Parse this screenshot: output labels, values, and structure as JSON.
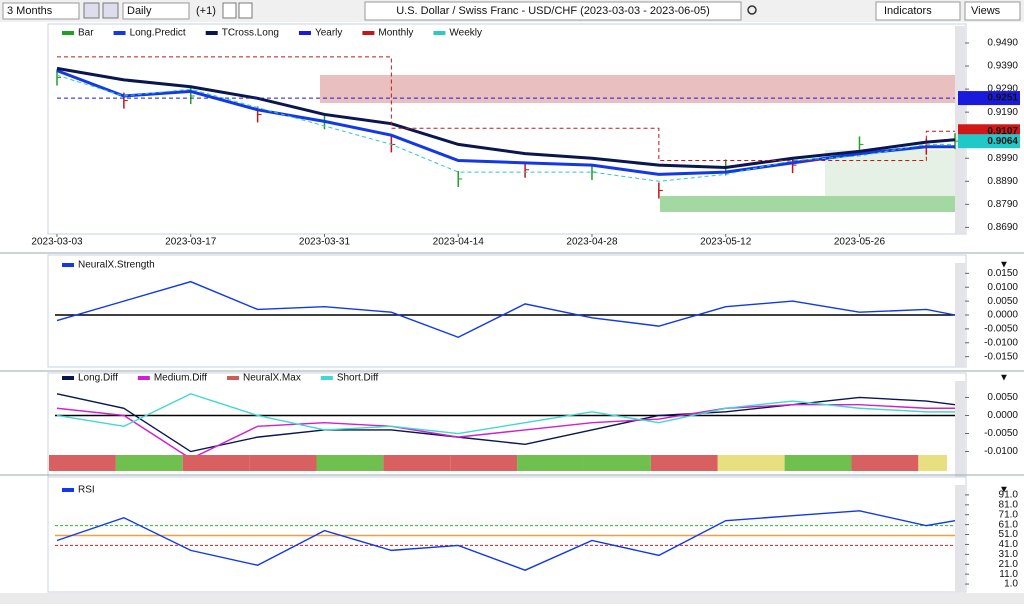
{
  "toolbar": {
    "period": "3 Months",
    "interval": "Daily",
    "offset": "(+1)",
    "title": "U.S. Dollar / Swiss Franc - USD/CHF (2023-03-03 - 2023-06-05)",
    "indicators": "Indicators",
    "views": "Views"
  },
  "chart_data": [
    {
      "type": "line",
      "x": [
        "2023-03-03",
        "2023-03-10",
        "2023-03-17",
        "2023-03-24",
        "2023-03-31",
        "2023-04-07",
        "2023-04-14",
        "2023-04-21",
        "2023-04-28",
        "2023-05-05",
        "2023-05-12",
        "2023-05-19",
        "2023-05-26",
        "2023-06-02",
        "2023-06-05"
      ],
      "xlim": [
        "2023-03-03",
        "2023-06-05"
      ],
      "xticks": [
        "2023-03-03",
        "2023-03-17",
        "2023-03-31",
        "2023-04-14",
        "2023-04-28",
        "2023-05-12",
        "2023-05-26"
      ],
      "ylim": [
        0.867,
        0.9555
      ],
      "yticks": [
        {
          "value": 0.949,
          "label": "0.9490"
        },
        {
          "value": 0.939,
          "label": "0.9390"
        },
        {
          "value": 0.929,
          "label": "0.9290"
        },
        {
          "value": 0.919,
          "label": "0.9190"
        },
        {
          "value": 0.909,
          "label": "0.9090"
        },
        {
          "value": 0.899,
          "label": "0.8990"
        },
        {
          "value": 0.889,
          "label": "0.8890"
        },
        {
          "value": 0.879,
          "label": "0.8790"
        },
        {
          "value": 0.869,
          "label": "0.8690"
        }
      ],
      "series": [
        {
          "name": "Bar",
          "color": "#22a022",
          "style": "bar",
          "values": [
            0.934,
            0.924,
            0.926,
            0.918,
            0.915,
            0.905,
            0.89,
            0.894,
            0.893,
            0.885,
            0.895,
            0.896,
            0.905,
            0.904,
            0.9064
          ]
        },
        {
          "name": "Long.Predict",
          "color": "#1238e8",
          "style": "thick",
          "values": [
            0.937,
            0.926,
            0.928,
            0.92,
            0.915,
            0.909,
            0.898,
            0.897,
            0.896,
            0.892,
            0.893,
            0.897,
            0.901,
            0.904,
            0.904
          ]
        },
        {
          "name": "TCross.Long",
          "color": "#0a1650",
          "style": "thick",
          "values": [
            0.938,
            0.933,
            0.93,
            0.925,
            0.918,
            0.914,
            0.905,
            0.901,
            0.899,
            0.896,
            0.895,
            0.899,
            0.902,
            0.906,
            0.907
          ]
        },
        {
          "name": "Yearly",
          "color": "#1a1adc",
          "style": "dashed",
          "values": [
            0.9251,
            0.9251,
            0.9251,
            0.9251,
            0.9251,
            0.9251,
            0.9251,
            0.9251,
            0.9251,
            0.9251,
            0.9251,
            0.9251,
            0.9251,
            0.9251,
            0.9251
          ]
        },
        {
          "name": "Monthly",
          "color": "#c01818",
          "style": "step",
          "values": [
            0.943,
            0.943,
            0.943,
            0.943,
            0.943,
            0.912,
            0.912,
            0.912,
            0.912,
            0.898,
            0.898,
            0.898,
            0.898,
            0.9107,
            0.9107
          ]
        },
        {
          "name": "Weekly",
          "color": "#30c8c0",
          "style": "dashed",
          "values": [
            0.935,
            0.926,
            0.929,
            0.921,
            0.913,
            0.905,
            0.893,
            0.893,
            0.893,
            0.889,
            0.892,
            0.898,
            0.9,
            0.905,
            0.905
          ]
        }
      ],
      "price_labels": [
        {
          "value": 0.9251,
          "label": "0.9251",
          "color": "#1a1adc"
        },
        {
          "value": 0.9107,
          "label": "0.9107",
          "color": "#d01818"
        },
        {
          "value": 0.9064,
          "label": "0.9064",
          "color": "#20c8c8"
        }
      ]
    },
    {
      "type": "line",
      "ylim": [
        -0.018,
        0.018
      ],
      "yticks": [
        {
          "value": 0.015,
          "label": "0.0150"
        },
        {
          "value": 0.01,
          "label": "0.0100"
        },
        {
          "value": 0.005,
          "label": "0.0050"
        },
        {
          "value": 0,
          "label": "0.0000"
        },
        {
          "value": -0.005,
          "label": "-0.0050"
        },
        {
          "value": -0.01,
          "label": "-0.0100"
        },
        {
          "value": -0.015,
          "label": "-0.0150"
        }
      ],
      "reference_lines": [
        {
          "value": 0,
          "color": "#000000"
        }
      ],
      "series": [
        {
          "name": "NeuralX.Strength",
          "color": "#1238e8",
          "values": [
            -0.002,
            0.005,
            0.012,
            0.002,
            0.003,
            0.001,
            -0.008,
            0.004,
            -0.001,
            -0.004,
            0.003,
            0.005,
            0.001,
            0.002,
            0.0
          ]
        }
      ]
    },
    {
      "type": "line",
      "ylim": [
        -0.0165,
        0.009
      ],
      "yticks": [
        {
          "value": 0.005,
          "label": "0.0050"
        },
        {
          "value": 0,
          "label": "0.0000"
        },
        {
          "value": -0.005,
          "label": "-0.0050"
        },
        {
          "value": -0.01,
          "label": "-0.0100"
        }
      ],
      "reference_lines": [
        {
          "value": 0,
          "color": "#000000"
        }
      ],
      "series": [
        {
          "name": "Long.Diff",
          "color": "#0a1650",
          "values": [
            0.006,
            0.002,
            -0.01,
            -0.006,
            -0.004,
            -0.004,
            -0.006,
            -0.008,
            -0.004,
            0.0,
            0.001,
            0.003,
            0.005,
            0.004,
            0.003
          ]
        },
        {
          "name": "Medium.Diff",
          "color": "#d020d0",
          "values": [
            0.002,
            0.0,
            -0.012,
            -0.003,
            -0.002,
            -0.003,
            -0.006,
            -0.004,
            -0.002,
            -0.001,
            0.002,
            0.003,
            0.003,
            0.002,
            0.002
          ]
        },
        {
          "name": "NeuralX.Max",
          "color": "#d05a5a",
          "style": "band",
          "colors": [
            "#d86060",
            "#70c050",
            "#d86060",
            "#d86060",
            "#70c050",
            "#d86060",
            "#d86060",
            "#70c050",
            "#70c050",
            "#d86060",
            "#e8e080",
            "#70c050",
            "#d86060",
            "#e8e080",
            "#d86060"
          ]
        },
        {
          "name": "Short.Diff",
          "color": "#40d8d0",
          "values": [
            0.0,
            -0.003,
            0.006,
            0.0,
            -0.004,
            -0.003,
            -0.005,
            -0.002,
            0.001,
            -0.002,
            0.002,
            0.004,
            0.002,
            0.001,
            0.001
          ]
        }
      ]
    },
    {
      "type": "line",
      "ylim": [
        -5,
        99
      ],
      "yticks": [
        {
          "value": 91,
          "label": "91.0"
        },
        {
          "value": 81,
          "label": "81.0"
        },
        {
          "value": 71,
          "label": "71.0"
        },
        {
          "value": 61,
          "label": "61.0"
        },
        {
          "value": 51,
          "label": "51.0"
        },
        {
          "value": 41,
          "label": "41.0"
        },
        {
          "value": 31,
          "label": "31.0"
        },
        {
          "value": 21,
          "label": "21.0"
        },
        {
          "value": 11,
          "label": "11.0"
        },
        {
          "value": 1,
          "label": "1.0"
        }
      ],
      "reference_lines": [
        {
          "value": 60,
          "color": "#20c020",
          "dashed": true
        },
        {
          "value": 50,
          "color": "#f0a040"
        },
        {
          "value": 40,
          "color": "#d02020",
          "dashed": true
        }
      ],
      "series": [
        {
          "name": "RSI",
          "color": "#1238e8",
          "values": [
            45,
            68,
            35,
            20,
            55,
            35,
            40,
            15,
            45,
            30,
            65,
            70,
            75,
            60,
            65
          ]
        }
      ]
    }
  ]
}
